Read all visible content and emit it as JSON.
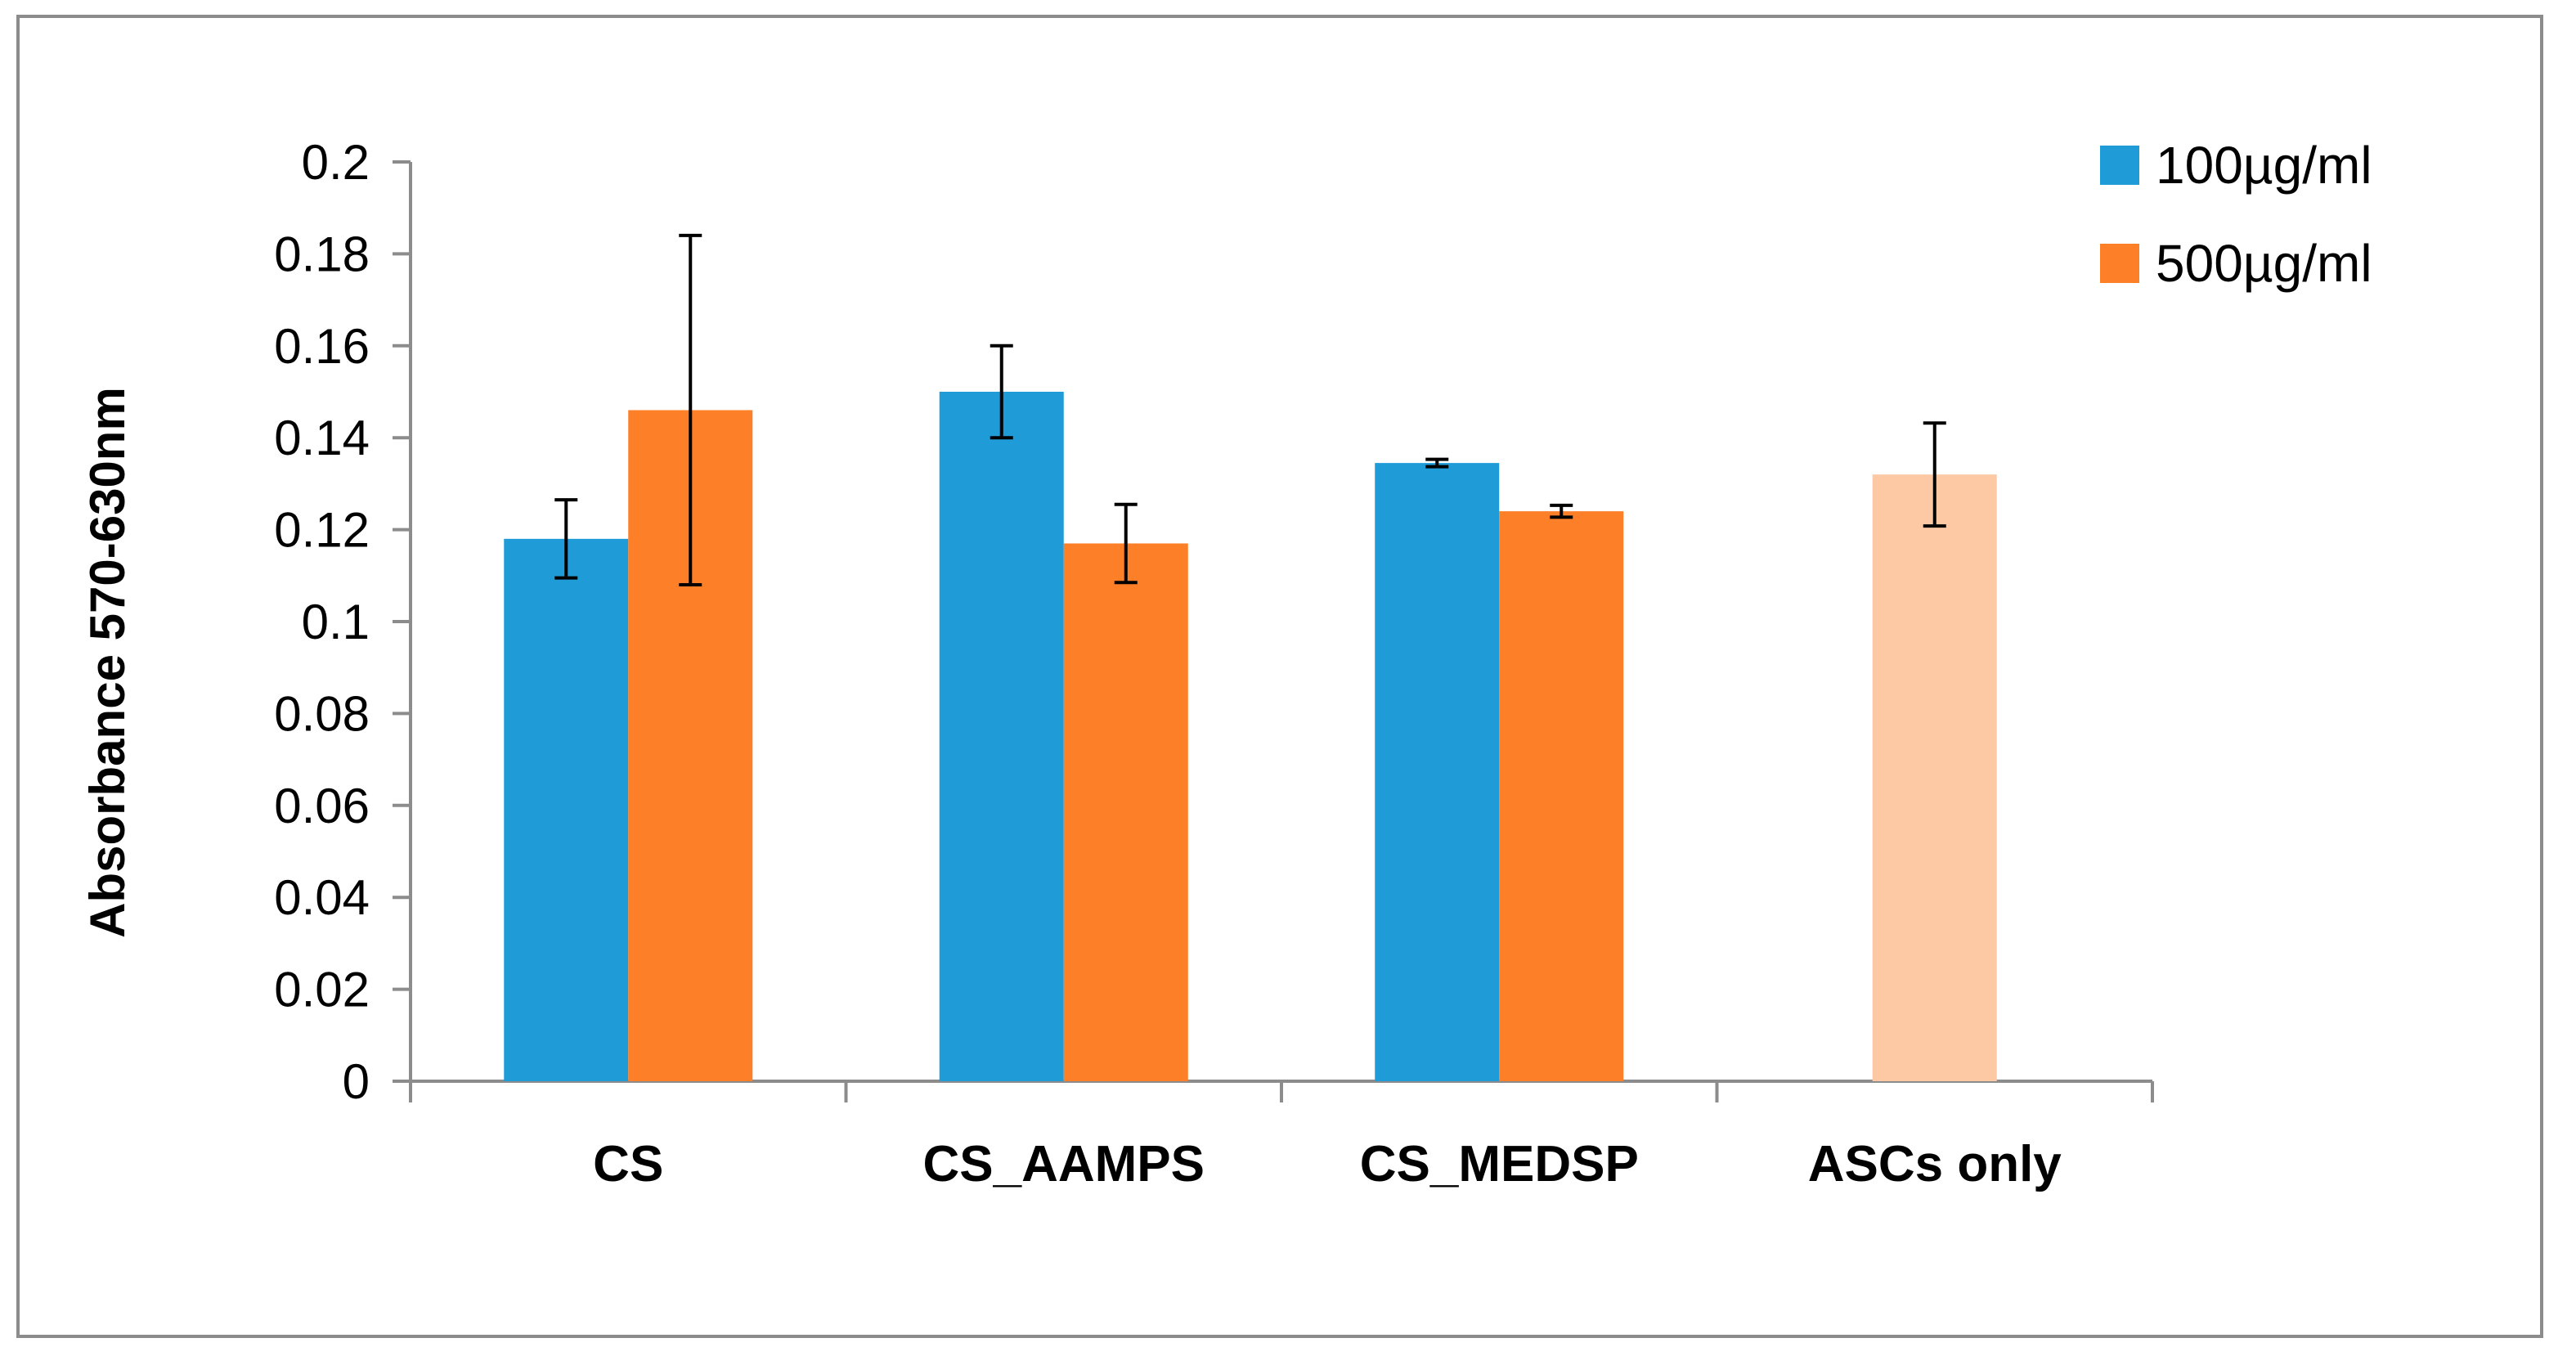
{
  "chart_data": {
    "type": "bar",
    "title": "",
    "xlabel": "",
    "ylabel": "Absorbance 570-630nm",
    "ylim": [
      0,
      0.2
    ],
    "ytick_step": 0.02,
    "yticks": [
      "0",
      "0.02",
      "0.04",
      "0.06",
      "0.08",
      "0.1",
      "0.12",
      "0.14",
      "0.16",
      "0.18",
      "0.2"
    ],
    "categories": [
      "CS",
      "CS_AAMPS",
      "CS_MEDSP",
      "ASCs only"
    ],
    "legend_position": "top-right",
    "series": [
      {
        "name": "100µg/ml",
        "color": "#1f9bd7",
        "values": [
          0.118,
          0.15,
          0.1345,
          null
        ],
        "errors": [
          0.0085,
          0.01,
          0.0008,
          null
        ]
      },
      {
        "name": "500µg/ml",
        "color": "#fd7f28",
        "values": [
          0.146,
          0.117,
          0.124,
          null
        ],
        "errors": [
          0.038,
          0.0085,
          0.0013,
          null
        ]
      }
    ],
    "control": {
      "category": "ASCs only",
      "value": 0.132,
      "error": 0.0112,
      "color": "#fdc9a5"
    },
    "grid": false
  }
}
